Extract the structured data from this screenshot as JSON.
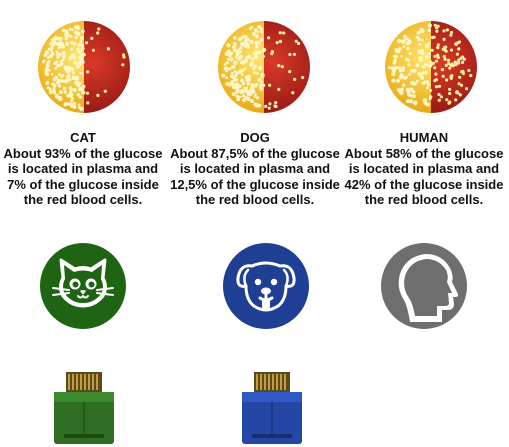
{
  "animals": [
    {
      "key": "cat",
      "name": "CAT",
      "description": "About 93% of the glucose is located in plasma and 7% of the glucose inside the red blood cells.",
      "plasma_percent": 93,
      "rbc_percent": 7,
      "badge_color": "#1e6413",
      "badge_icon": "cat-face-icon",
      "chip_color": "#2e6e23"
    },
    {
      "key": "dog",
      "name": "DOG",
      "description": "About 87,5% of the glucose is located in plasma and 12,5% of the glucose inside the red blood cells.",
      "plasma_percent": 87.5,
      "rbc_percent": 12.5,
      "badge_color": "#1f3f95",
      "badge_icon": "dog-face-icon",
      "chip_color": "#2447a6"
    },
    {
      "key": "human",
      "name": "HUMAN",
      "description": "About 58% of the glucose is located in plasma and 42% of the glucose inside the red blood cells.",
      "plasma_percent": 58,
      "rbc_percent": 42,
      "badge_color": "#6e6e6e",
      "badge_icon": "human-head-profile-icon"
    }
  ],
  "colors": {
    "plasma": "#f3c21b",
    "red_blood_cells": "#b01f1c",
    "glucose_dot": "#fff6c8"
  }
}
